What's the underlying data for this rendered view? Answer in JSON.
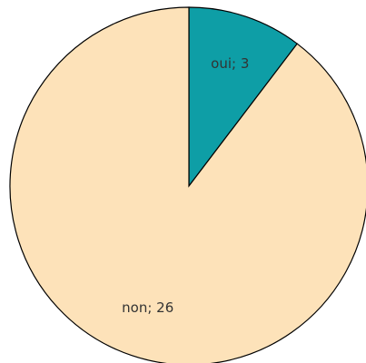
{
  "chart_data": {
    "type": "pie",
    "values": [
      3,
      26
    ],
    "value_labels": [
      "oui; 3",
      "non; 26"
    ],
    "colors": [
      "#0e9ea6",
      "#fde2b9"
    ]
  }
}
